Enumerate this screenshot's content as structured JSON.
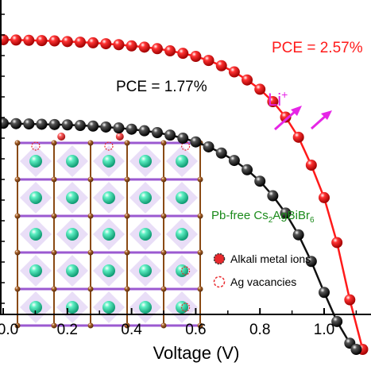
{
  "chart_data": {
    "type": "line",
    "title": "",
    "xlabel": "Voltage (V)",
    "ylabel": "",
    "xlim": [
      0.0,
      1.15
    ],
    "xticks": [
      "0.0",
      "0.2",
      "0.4",
      "0.6",
      "0.8",
      "1.0"
    ],
    "tick_values": [
      0.0,
      0.2,
      0.4,
      0.6,
      0.8,
      1.0
    ],
    "grid": false,
    "series": [
      {
        "name": "",
        "color": "#ff1a1a",
        "marker": "sphere",
        "annotation": "PCE = 2.57%",
        "x": [
          0.0,
          0.04,
          0.08,
          0.12,
          0.16,
          0.2,
          0.24,
          0.28,
          0.32,
          0.36,
          0.4,
          0.44,
          0.48,
          0.52,
          0.56,
          0.6,
          0.64,
          0.68,
          0.72,
          0.76,
          0.8,
          0.84,
          0.88,
          0.92,
          0.96,
          1.0,
          1.04,
          1.08,
          1.12
        ],
        "y": [
          100.0,
          99.9,
          99.8,
          99.7,
          99.6,
          99.4,
          99.2,
          99.0,
          98.7,
          98.4,
          98.0,
          97.6,
          97.1,
          96.4,
          95.6,
          94.6,
          93.3,
          91.6,
          89.6,
          87.0,
          84.0,
          80.0,
          75.0,
          68.5,
          59.5,
          49.0,
          34.5,
          16.0,
          0.0
        ]
      },
      {
        "name": "",
        "color": "#111111",
        "marker": "sphere",
        "annotation": "PCE = 1.77%",
        "x": [
          0.0,
          0.04,
          0.08,
          0.12,
          0.16,
          0.2,
          0.24,
          0.28,
          0.32,
          0.36,
          0.4,
          0.44,
          0.48,
          0.52,
          0.56,
          0.6,
          0.64,
          0.68,
          0.72,
          0.76,
          0.8,
          0.84,
          0.88,
          0.92,
          0.96,
          1.0,
          1.04,
          1.08,
          1.1
        ],
        "y": [
          73.0,
          72.9,
          72.8,
          72.7,
          72.6,
          72.5,
          72.3,
          72.1,
          71.8,
          71.5,
          71.1,
          70.6,
          70.0,
          69.2,
          68.2,
          67.0,
          65.4,
          63.4,
          61.0,
          58.0,
          54.3,
          49.6,
          44.0,
          37.0,
          28.4,
          18.4,
          9.0,
          2.0,
          0.0
        ]
      }
    ],
    "annotations": {
      "li_label": "Li",
      "li_superscript": "+",
      "material_prefix": "Pb-free Cs",
      "material_sub1": "2",
      "material_mid": "AgBiBr",
      "material_sub2": "6",
      "legend_alkali": "Alkali metal ions",
      "legend_vacancy": "Ag vacancies"
    },
    "colors": {
      "arrow": "#e626e6",
      "material_text": "#1a8a1a",
      "alkali_marker": "#e8282c",
      "vacancy_marker": "#e8282c",
      "bi_atom": "#2ad6a0",
      "br_atom": "#8a4a14",
      "ag_octahedra": "#9b59d0"
    }
  }
}
